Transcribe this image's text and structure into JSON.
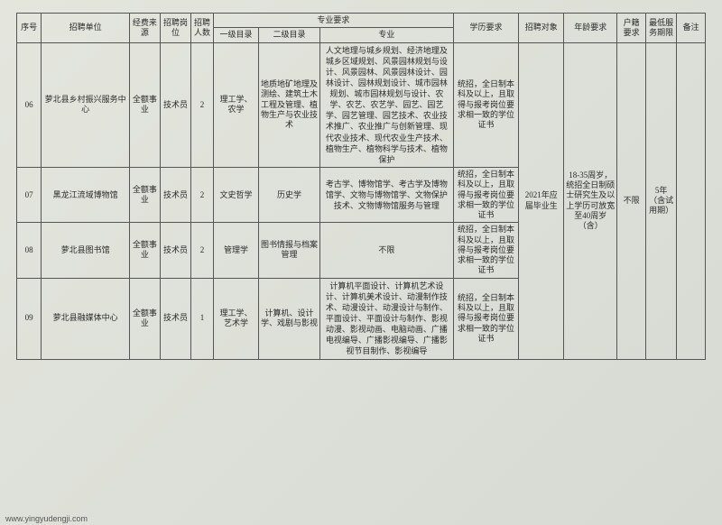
{
  "header": {
    "seq": "序号",
    "unit": "招聘单位",
    "fund": "经费来源",
    "post": "招聘岗位",
    "num": "招聘人数",
    "major_group": "专业要求",
    "cat1": "一级目录",
    "cat2": "二级目录",
    "major": "专业",
    "edu": "学历要求",
    "obj": "招聘对象",
    "age": "年龄要求",
    "huji": "户籍要求",
    "term": "最低服务期限",
    "note": "备注"
  },
  "shared": {
    "obj": "2021年应届毕业生",
    "age": "18-35周岁，统招全日制硕士研究生及以上学历可放宽至40周岁（含）",
    "huji": "不限",
    "term": "5年（含试用期）"
  },
  "rows": [
    {
      "seq": "06",
      "unit": "萝北县乡村振兴服务中心",
      "fund": "全额事业",
      "post": "技术员",
      "num": "2",
      "cat1": "理工学、农学",
      "cat2": "地质地矿地理及测绘、建筑土木工程及管理、植物生产与农业技术",
      "major": "人文地理与城乡规划、经济地理及城乡区域规划、风景园林规划与设计、风景园林、风景园林设计、园林设计、园林规划设计、城市园林规划、城市园林规划与设计、农学、农艺、农艺学、园艺、园艺学、园艺管理、园艺技术、农业技术推广、农业推广与创新管理、现代农业技术、现代农业生产技术、植物生产、植物科学与技术、植物保护",
      "edu": "统招，全日制本科及以上，且取得与报考岗位要求相一致的学位证书"
    },
    {
      "seq": "07",
      "unit": "黑龙江流域博物馆",
      "fund": "全额事业",
      "post": "技术员",
      "num": "2",
      "cat1": "文史哲学",
      "cat2": "历史学",
      "major": "考古学、博物馆学、考古学及博物馆学、文物与博物馆学、文物保护技术、文物博物馆服务与管理",
      "edu": "统招，全日制本科及以上，且取得与报考岗位要求相一致的学位证书"
    },
    {
      "seq": "08",
      "unit": "萝北县图书馆",
      "fund": "全额事业",
      "post": "技术员",
      "num": "2",
      "cat1": "管理学",
      "cat2": "图书情报与档案管理",
      "major": "不限",
      "edu": "统招，全日制本科及以上，且取得与报考岗位要求相一致的学位证书"
    },
    {
      "seq": "09",
      "unit": "萝北县融媒体中心",
      "fund": "全额事业",
      "post": "技术员",
      "num": "1",
      "cat1": "理工学、艺术学",
      "cat2": "计算机、设计学、戏剧与影视",
      "major": "计算机平面设计、计算机艺术设计、计算机美术设计、动漫制作技术、动漫设计、动漫设计与制作、平面设计、平面设计与制作、影视动漫、影视动画、电脑动画、广播电视编导、广播影视编导、广播影视节目制作、影视编导",
      "edu": "统招，全日制本科及以上，且取得与报考岗位要求相一致的学位证书"
    }
  ],
  "footer": "www.yingyudengji.com"
}
